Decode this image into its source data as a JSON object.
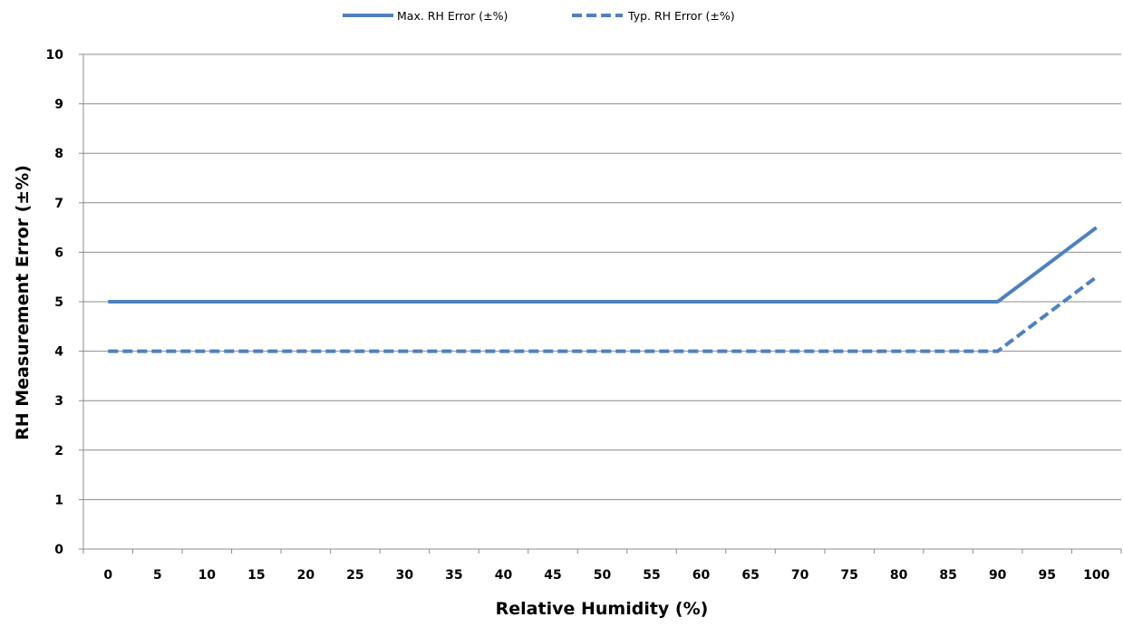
{
  "chart_data": {
    "type": "line",
    "title": "",
    "xlabel": "Relative Humidity (%)",
    "ylabel": "RH Measurement Error (±%)",
    "categories": [
      "0",
      "5",
      "10",
      "15",
      "20",
      "25",
      "30",
      "35",
      "40",
      "45",
      "50",
      "55",
      "60",
      "65",
      "70",
      "75",
      "80",
      "85",
      "90",
      "95",
      "100"
    ],
    "y_ticks": [
      "0",
      "1",
      "2",
      "3",
      "4",
      "5",
      "6",
      "7",
      "8",
      "9",
      "10"
    ],
    "ylim": [
      0,
      10
    ],
    "grid": "horizontal",
    "legend_position": "top",
    "series": [
      {
        "name": "Max. RH Error (±%)",
        "style": "solid",
        "color": "#4f81bd",
        "points": [
          [
            0,
            5
          ],
          [
            90,
            5
          ],
          [
            100,
            6.5
          ]
        ]
      },
      {
        "name": "Typ. RH Error (±%)",
        "style": "dashed",
        "color": "#4f81bd",
        "points": [
          [
            0,
            4
          ],
          [
            90,
            4
          ],
          [
            100,
            5.5
          ]
        ]
      }
    ]
  }
}
